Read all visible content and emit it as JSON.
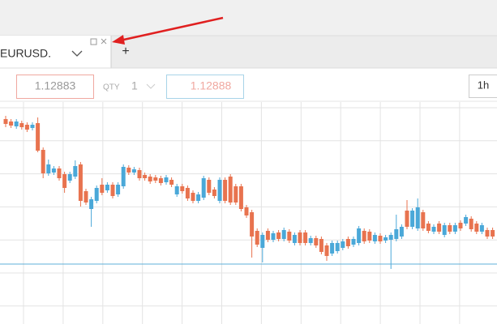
{
  "tab": {
    "symbol": "EURUSD.",
    "add": "+"
  },
  "toolbar": {
    "bid": "1.12883",
    "qty_label": "QTY",
    "qty": "1",
    "ask": "1.12888",
    "timeframe": "1h"
  },
  "chart_data": {
    "type": "candlestick",
    "ylim": [
      0,
      280
    ],
    "up_color": "#4aa8d8",
    "down_color": "#e8734f",
    "price_line": 74,
    "price_line_color": "#5fb0d8",
    "ohlc": [
      [
        253,
        257,
        243,
        247
      ],
      [
        250,
        253,
        242,
        245
      ],
      [
        244,
        253,
        241,
        250
      ],
      [
        248,
        251,
        240,
        243
      ],
      [
        246,
        249,
        237,
        240
      ],
      [
        242,
        249,
        239,
        246
      ],
      [
        248,
        255,
        212,
        214
      ],
      [
        215,
        218,
        180,
        186
      ],
      [
        186,
        203,
        183,
        197
      ],
      [
        187,
        195,
        184,
        192
      ],
      [
        192,
        195,
        177,
        180
      ],
      [
        185,
        188,
        162,
        168
      ],
      [
        177,
        188,
        174,
        185
      ],
      [
        182,
        202,
        179,
        195
      ],
      [
        197,
        200,
        145,
        152
      ],
      [
        164,
        167,
        147,
        150
      ],
      [
        142,
        157,
        120,
        154
      ],
      [
        152,
        171,
        149,
        168
      ],
      [
        172,
        180,
        159,
        162
      ],
      [
        165,
        175,
        162,
        172
      ],
      [
        172,
        175,
        155,
        158
      ],
      [
        160,
        175,
        157,
        172
      ],
      [
        170,
        197,
        167,
        194
      ],
      [
        193,
        196,
        184,
        187
      ],
      [
        187,
        194,
        184,
        191
      ],
      [
        190,
        193,
        177,
        180
      ],
      [
        184,
        187,
        177,
        180
      ],
      [
        182,
        185,
        173,
        176
      ],
      [
        181,
        184,
        174,
        177
      ],
      [
        180,
        183,
        171,
        174
      ],
      [
        175,
        184,
        172,
        181
      ],
      [
        178,
        181,
        169,
        172
      ],
      [
        160,
        173,
        157,
        170
      ],
      [
        170,
        173,
        161,
        164
      ],
      [
        168,
        171,
        152,
        155
      ],
      [
        162,
        165,
        149,
        152
      ],
      [
        152,
        163,
        149,
        160
      ],
      [
        156,
        183,
        153,
        180
      ],
      [
        178,
        181,
        159,
        162
      ],
      [
        166,
        169,
        155,
        158
      ],
      [
        152,
        181,
        149,
        178
      ],
      [
        178,
        181,
        149,
        152
      ],
      [
        182,
        185,
        147,
        150
      ],
      [
        170,
        173,
        147,
        150
      ],
      [
        170,
        173,
        139,
        142
      ],
      [
        144,
        147,
        131,
        134
      ],
      [
        138,
        141,
        82,
        108
      ],
      [
        115,
        118,
        95,
        98
      ],
      [
        94,
        113,
        76,
        110
      ],
      [
        115,
        118,
        101,
        104
      ],
      [
        104,
        115,
        101,
        112
      ],
      [
        113,
        116,
        102,
        105
      ],
      [
        105,
        119,
        102,
        116
      ],
      [
        114,
        117,
        100,
        103
      ],
      [
        100,
        113,
        97,
        110
      ],
      [
        113,
        116,
        97,
        100
      ],
      [
        113,
        116,
        97,
        100
      ],
      [
        100,
        109,
        97,
        106
      ],
      [
        106,
        109,
        94,
        97
      ],
      [
        105,
        108,
        86,
        89
      ],
      [
        97,
        100,
        78,
        84
      ],
      [
        87,
        103,
        84,
        100
      ],
      [
        90,
        103,
        87,
        100
      ],
      [
        94,
        105,
        91,
        102
      ],
      [
        105,
        108,
        93,
        96
      ],
      [
        98,
        108,
        95,
        105
      ],
      [
        100,
        121,
        97,
        118
      ],
      [
        115,
        118,
        99,
        102
      ],
      [
        114,
        117,
        100,
        103
      ],
      [
        102,
        113,
        99,
        110
      ],
      [
        109,
        112,
        99,
        102
      ],
      [
        103,
        110,
        100,
        107
      ],
      [
        104,
        113,
        68,
        110
      ],
      [
        105,
        135,
        102,
        117
      ],
      [
        108,
        123,
        105,
        120
      ],
      [
        140,
        153,
        117,
        120
      ],
      [
        120,
        143,
        117,
        140
      ],
      [
        118,
        155,
        115,
        144
      ],
      [
        138,
        141,
        115,
        118
      ],
      [
        124,
        127,
        112,
        115
      ],
      [
        114,
        123,
        111,
        120
      ],
      [
        124,
        127,
        111,
        114
      ],
      [
        110,
        125,
        107,
        122
      ],
      [
        122,
        125,
        111,
        114
      ],
      [
        114,
        125,
        111,
        122
      ],
      [
        125,
        128,
        115,
        118
      ],
      [
        124,
        135,
        121,
        132
      ],
      [
        130,
        133,
        114,
        117
      ],
      [
        124,
        127,
        111,
        114
      ],
      [
        114,
        125,
        111,
        122
      ],
      [
        116,
        119,
        105,
        108
      ],
      [
        116,
        119,
        105,
        108
      ]
    ]
  }
}
